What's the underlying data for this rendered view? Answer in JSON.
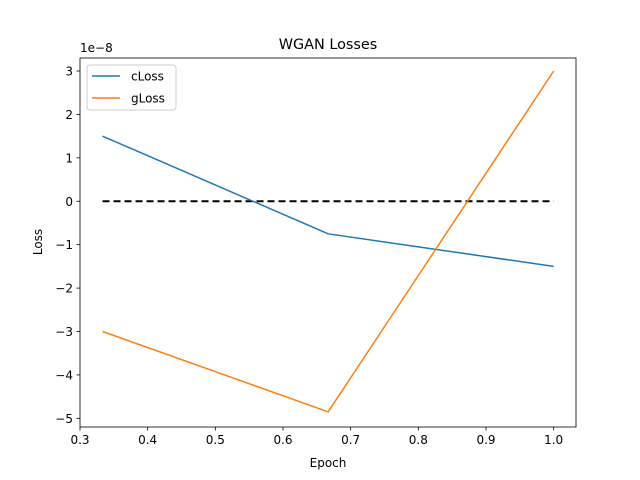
{
  "chart_data": {
    "type": "line",
    "title": "WGAN Losses",
    "xlabel": "Epoch",
    "ylabel": "Loss",
    "y_scale_label": "1e−8",
    "xlim": [
      0.3,
      1.033
    ],
    "ylim": [
      -5.2,
      3.3
    ],
    "xticks": [
      0.3,
      0.4,
      0.5,
      0.6,
      0.7,
      0.8,
      0.9,
      1.0
    ],
    "xtick_labels": [
      "0.3",
      "0.4",
      "0.5",
      "0.6",
      "0.7",
      "0.8",
      "0.9",
      "1.0"
    ],
    "yticks": [
      -5,
      -4,
      -3,
      -2,
      -1,
      0,
      1,
      2,
      3
    ],
    "ytick_labels": [
      "−5",
      "−4",
      "−3",
      "−2",
      "−1",
      "0",
      "1",
      "2",
      "3"
    ],
    "grid": false,
    "legend_position": "top-left",
    "series": [
      {
        "name": "cLoss",
        "color": "#1f77b4",
        "x": [
          0.3333,
          0.6667,
          1.0
        ],
        "y": [
          1.5,
          -0.75,
          -1.5
        ]
      },
      {
        "name": "gLoss",
        "color": "#ff7f0e",
        "x": [
          0.3333,
          0.6667,
          1.0
        ],
        "y": [
          -3.0,
          -4.85,
          3.0
        ]
      }
    ],
    "reference_line": {
      "style": "dashed",
      "color": "#000000",
      "x": [
        0.3333,
        1.0
      ],
      "y": [
        0,
        0
      ]
    }
  }
}
